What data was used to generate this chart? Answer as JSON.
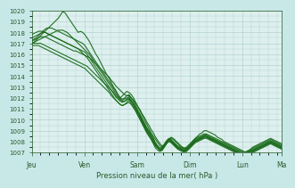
{
  "xlabel": "Pression niveau de la mer( hPa )",
  "bg_color": "#c8e8e8",
  "plot_bg_color": "#ddf0ee",
  "line_color": "#1a6b1a",
  "grid_color": "#aacccc",
  "tick_color": "#2a5a2a",
  "ylim": [
    1007,
    1020
  ],
  "yticks": [
    1007,
    1008,
    1009,
    1010,
    1011,
    1012,
    1013,
    1014,
    1015,
    1016,
    1017,
    1018,
    1019,
    1020
  ],
  "day_positions": [
    0,
    24,
    48,
    72,
    96,
    114
  ],
  "day_labels": [
    "Jeu",
    "Ven",
    "Sam",
    "Dim",
    "Lun",
    "Ma"
  ],
  "xlim": [
    0,
    114
  ],
  "series": [
    [
      1017.0,
      1017.1,
      1017.3,
      1017.5,
      1017.7,
      1017.9,
      1018.1,
      1018.3,
      1018.5,
      1018.7,
      1018.9,
      1019.1,
      1019.3,
      1019.6,
      1019.9,
      1019.8,
      1019.5,
      1019.2,
      1018.9,
      1018.6,
      1018.3,
      1018.0,
      1018.1,
      1018.0,
      1017.8,
      1017.5,
      1017.2,
      1016.8,
      1016.4,
      1016.0,
      1015.7,
      1015.3,
      1014.9,
      1014.5,
      1014.1,
      1013.8,
      1013.4,
      1013.0,
      1012.7,
      1012.3,
      1012.0,
      1012.2,
      1012.4,
      1012.6,
      1012.5,
      1012.3,
      1012.0,
      1011.6,
      1011.2,
      1010.8,
      1010.4,
      1010.0,
      1009.6,
      1009.2,
      1008.8,
      1008.5,
      1008.2,
      1007.9,
      1007.6,
      1007.5,
      1007.6,
      1007.9,
      1008.2,
      1008.4,
      1008.3,
      1008.1,
      1007.9,
      1007.7,
      1007.5,
      1007.4,
      1007.3,
      1007.5,
      1007.8,
      1008.1,
      1008.3,
      1008.5,
      1008.7,
      1008.8,
      1009.0,
      1009.0,
      1008.9,
      1008.8,
      1008.7,
      1008.6,
      1008.4,
      1008.3,
      1008.2,
      1008.0,
      1007.9,
      1007.8,
      1007.7,
      1007.6,
      1007.5,
      1007.4,
      1007.3,
      1007.2,
      1007.1,
      1007.0,
      1007.1,
      1007.3,
      1007.5,
      1007.6,
      1007.7,
      1007.8,
      1007.9,
      1008.0,
      1008.1,
      1008.2,
      1008.3,
      1008.2,
      1008.1,
      1008.0,
      1007.9,
      1007.8
    ],
    [
      1017.2,
      1017.3,
      1017.4,
      1017.5,
      1017.6,
      1017.6,
      1017.6,
      1017.5,
      1017.4,
      1017.3,
      1017.2,
      1017.1,
      1017.0,
      1016.9,
      1016.8,
      1016.7,
      1016.6,
      1016.5,
      1016.4,
      1016.3,
      1016.3,
      1016.2,
      1016.1,
      1016.0,
      1015.9,
      1015.8,
      1015.7,
      1015.5,
      1015.3,
      1015.1,
      1014.9,
      1014.7,
      1014.5,
      1014.3,
      1014.1,
      1013.9,
      1013.6,
      1013.4,
      1013.1,
      1012.9,
      1012.7,
      1012.5,
      1012.3,
      1012.2,
      1012.2,
      1012.0,
      1011.8,
      1011.5,
      1011.2,
      1010.9,
      1010.5,
      1010.2,
      1009.8,
      1009.5,
      1009.1,
      1008.8,
      1008.4,
      1008.1,
      1007.8,
      1007.6,
      1007.7,
      1007.9,
      1008.2,
      1008.3,
      1008.2,
      1008.0,
      1007.8,
      1007.6,
      1007.5,
      1007.4,
      1007.5,
      1007.7,
      1007.9,
      1008.1,
      1008.3,
      1008.4,
      1008.5,
      1008.6,
      1008.7,
      1008.7,
      1008.6,
      1008.5,
      1008.4,
      1008.3,
      1008.2,
      1008.1,
      1008.0,
      1007.9,
      1007.8,
      1007.7,
      1007.6,
      1007.5,
      1007.4,
      1007.3,
      1007.2,
      1007.1,
      1007.0,
      1007.1,
      1007.2,
      1007.3,
      1007.4,
      1007.5,
      1007.6,
      1007.7,
      1007.8,
      1007.9,
      1008.0,
      1008.1,
      1008.2,
      1008.1,
      1008.0,
      1007.9,
      1007.8,
      1007.7
    ],
    [
      1017.0,
      1017.0,
      1017.0,
      1017.0,
      1017.0,
      1016.9,
      1016.8,
      1016.7,
      1016.6,
      1016.5,
      1016.4,
      1016.3,
      1016.2,
      1016.1,
      1016.0,
      1015.9,
      1015.8,
      1015.7,
      1015.6,
      1015.5,
      1015.4,
      1015.3,
      1015.2,
      1015.1,
      1015.0,
      1014.9,
      1014.7,
      1014.5,
      1014.3,
      1014.1,
      1013.9,
      1013.7,
      1013.5,
      1013.3,
      1013.1,
      1012.9,
      1012.7,
      1012.5,
      1012.2,
      1012.0,
      1011.8,
      1011.7,
      1011.7,
      1011.8,
      1011.9,
      1011.7,
      1011.4,
      1011.1,
      1010.7,
      1010.4,
      1010.0,
      1009.6,
      1009.2,
      1008.9,
      1008.5,
      1008.2,
      1007.8,
      1007.5,
      1007.3,
      1007.4,
      1007.7,
      1008.0,
      1008.2,
      1008.1,
      1007.9,
      1007.7,
      1007.5,
      1007.4,
      1007.3,
      1007.2,
      1007.3,
      1007.5,
      1007.7,
      1007.9,
      1008.1,
      1008.2,
      1008.3,
      1008.4,
      1008.5,
      1008.5,
      1008.4,
      1008.3,
      1008.2,
      1008.1,
      1008.0,
      1007.9,
      1007.8,
      1007.7,
      1007.6,
      1007.5,
      1007.4,
      1007.3,
      1007.2,
      1007.1,
      1007.0,
      1006.9,
      1006.8,
      1006.9,
      1007.0,
      1007.1,
      1007.2,
      1007.3,
      1007.4,
      1007.5,
      1007.6,
      1007.7,
      1007.8,
      1007.9,
      1008.0,
      1007.9,
      1007.8,
      1007.7,
      1007.6,
      1007.5
    ],
    [
      1016.8,
      1016.8,
      1016.8,
      1016.8,
      1016.7,
      1016.6,
      1016.5,
      1016.4,
      1016.3,
      1016.2,
      1016.1,
      1016.0,
      1015.9,
      1015.8,
      1015.7,
      1015.6,
      1015.5,
      1015.4,
      1015.3,
      1015.2,
      1015.1,
      1015.0,
      1014.9,
      1014.8,
      1014.7,
      1014.5,
      1014.3,
      1014.1,
      1013.9,
      1013.7,
      1013.5,
      1013.3,
      1013.1,
      1012.9,
      1012.7,
      1012.5,
      1012.2,
      1012.0,
      1011.8,
      1011.6,
      1011.4,
      1011.3,
      1011.4,
      1011.5,
      1011.6,
      1011.4,
      1011.1,
      1010.8,
      1010.4,
      1010.1,
      1009.7,
      1009.3,
      1008.9,
      1008.6,
      1008.2,
      1007.9,
      1007.6,
      1007.4,
      1007.2,
      1007.3,
      1007.6,
      1007.9,
      1008.1,
      1008.0,
      1007.8,
      1007.6,
      1007.4,
      1007.3,
      1007.2,
      1007.1,
      1007.2,
      1007.4,
      1007.6,
      1007.8,
      1008.0,
      1008.1,
      1008.2,
      1008.3,
      1008.4,
      1008.4,
      1008.3,
      1008.2,
      1008.1,
      1008.0,
      1007.9,
      1007.8,
      1007.7,
      1007.6,
      1007.5,
      1007.4,
      1007.3,
      1007.2,
      1007.1,
      1007.0,
      1006.9,
      1006.8,
      1006.7,
      1006.8,
      1006.9,
      1007.0,
      1007.1,
      1007.2,
      1007.3,
      1007.4,
      1007.5,
      1007.6,
      1007.7,
      1007.8,
      1007.9,
      1007.8,
      1007.7,
      1007.6,
      1007.5,
      1007.4
    ],
    [
      1017.0,
      1017.1,
      1017.2,
      1017.3,
      1017.4,
      1017.5,
      1017.6,
      1017.7,
      1017.8,
      1017.9,
      1018.0,
      1018.1,
      1018.2,
      1018.2,
      1018.2,
      1018.1,
      1018.0,
      1017.8,
      1017.6,
      1017.4,
      1017.2,
      1017.0,
      1016.8,
      1016.6,
      1016.4,
      1016.2,
      1016.0,
      1015.7,
      1015.4,
      1015.1,
      1014.8,
      1014.5,
      1014.2,
      1013.9,
      1013.6,
      1013.3,
      1013.0,
      1012.7,
      1012.4,
      1012.1,
      1011.9,
      1011.8,
      1011.9,
      1012.0,
      1012.1,
      1011.8,
      1011.5,
      1011.1,
      1010.7,
      1010.3,
      1009.9,
      1009.5,
      1009.1,
      1008.8,
      1008.5,
      1008.1,
      1007.7,
      1007.5,
      1007.3,
      1007.4,
      1007.7,
      1008.0,
      1008.2,
      1008.1,
      1007.9,
      1007.7,
      1007.5,
      1007.4,
      1007.3,
      1007.2,
      1007.3,
      1007.5,
      1007.7,
      1007.9,
      1008.1,
      1008.2,
      1008.3,
      1008.4,
      1008.5,
      1008.5,
      1008.4,
      1008.3,
      1008.2,
      1008.1,
      1008.0,
      1007.9,
      1007.8,
      1007.7,
      1007.6,
      1007.5,
      1007.4,
      1007.3,
      1007.2,
      1007.1,
      1007.0,
      1006.9,
      1006.8,
      1006.9,
      1007.0,
      1007.1,
      1007.2,
      1007.3,
      1007.4,
      1007.5,
      1007.6,
      1007.7,
      1007.8,
      1007.9,
      1008.0,
      1007.9,
      1007.8,
      1007.7,
      1007.6,
      1007.5
    ],
    [
      1017.3,
      1017.4,
      1017.5,
      1017.7,
      1017.9,
      1018.1,
      1018.3,
      1018.4,
      1018.4,
      1018.4,
      1018.3,
      1018.2,
      1018.1,
      1018.0,
      1017.9,
      1017.8,
      1017.7,
      1017.6,
      1017.5,
      1017.4,
      1017.3,
      1017.2,
      1017.1,
      1017.0,
      1016.8,
      1016.5,
      1016.2,
      1015.9,
      1015.6,
      1015.3,
      1015.0,
      1014.7,
      1014.4,
      1014.1,
      1013.8,
      1013.5,
      1013.2,
      1012.9,
      1012.6,
      1012.3,
      1012.0,
      1011.9,
      1012.0,
      1012.2,
      1012.3,
      1012.0,
      1011.7,
      1011.3,
      1010.9,
      1010.5,
      1010.1,
      1009.7,
      1009.3,
      1009.0,
      1008.7,
      1008.3,
      1007.9,
      1007.6,
      1007.4,
      1007.5,
      1007.8,
      1008.1,
      1008.3,
      1008.2,
      1008.0,
      1007.8,
      1007.6,
      1007.5,
      1007.4,
      1007.3,
      1007.4,
      1007.6,
      1007.8,
      1008.0,
      1008.2,
      1008.3,
      1008.4,
      1008.5,
      1008.6,
      1008.6,
      1008.5,
      1008.4,
      1008.3,
      1008.2,
      1008.1,
      1008.0,
      1007.9,
      1007.8,
      1007.7,
      1007.6,
      1007.5,
      1007.4,
      1007.3,
      1007.2,
      1007.1,
      1007.0,
      1006.9,
      1007.0,
      1007.1,
      1007.2,
      1007.3,
      1007.4,
      1007.5,
      1007.6,
      1007.7,
      1007.8,
      1007.9,
      1008.0,
      1008.1,
      1008.0,
      1007.9,
      1007.8,
      1007.7,
      1007.6
    ],
    [
      1017.5,
      1017.6,
      1017.7,
      1017.8,
      1017.9,
      1018.0,
      1018.0,
      1017.9,
      1017.8,
      1017.7,
      1017.6,
      1017.5,
      1017.4,
      1017.3,
      1017.2,
      1017.1,
      1017.0,
      1016.9,
      1016.8,
      1016.7,
      1016.6,
      1016.5,
      1016.4,
      1016.3,
      1016.2,
      1016.0,
      1015.7,
      1015.4,
      1015.1,
      1014.8,
      1014.5,
      1014.2,
      1013.9,
      1013.6,
      1013.3,
      1013.0,
      1012.7,
      1012.4,
      1012.1,
      1011.9,
      1011.7,
      1011.6,
      1011.7,
      1011.9,
      1012.0,
      1011.7,
      1011.4,
      1011.0,
      1010.6,
      1010.2,
      1009.8,
      1009.4,
      1009.0,
      1008.7,
      1008.4,
      1008.0,
      1007.6,
      1007.4,
      1007.2,
      1007.3,
      1007.6,
      1007.9,
      1008.1,
      1008.0,
      1007.8,
      1007.6,
      1007.4,
      1007.3,
      1007.2,
      1007.1,
      1007.2,
      1007.4,
      1007.6,
      1007.8,
      1008.0,
      1008.1,
      1008.2,
      1008.3,
      1008.4,
      1008.4,
      1008.3,
      1008.2,
      1008.1,
      1008.0,
      1007.9,
      1007.8,
      1007.7,
      1007.6,
      1007.5,
      1007.4,
      1007.3,
      1007.2,
      1007.1,
      1007.0,
      1006.9,
      1006.8,
      1006.7,
      1006.8,
      1006.9,
      1007.0,
      1007.1,
      1007.2,
      1007.3,
      1007.4,
      1007.5,
      1007.6,
      1007.7,
      1007.8,
      1007.9,
      1007.8,
      1007.7,
      1007.6,
      1007.5,
      1007.4
    ],
    [
      1017.8,
      1017.9,
      1018.0,
      1018.1,
      1018.1,
      1018.1,
      1018.0,
      1017.9,
      1017.8,
      1017.7,
      1017.6,
      1017.5,
      1017.4,
      1017.3,
      1017.2,
      1017.1,
      1017.0,
      1016.9,
      1016.8,
      1016.7,
      1016.6,
      1016.5,
      1016.3,
      1016.1,
      1015.9,
      1015.7,
      1015.4,
      1015.1,
      1014.8,
      1014.5,
      1014.2,
      1013.9,
      1013.6,
      1013.3,
      1013.0,
      1012.7,
      1012.4,
      1012.1,
      1011.8,
      1011.6,
      1011.4,
      1011.3,
      1011.4,
      1011.6,
      1011.8,
      1011.5,
      1011.2,
      1010.8,
      1010.4,
      1010.0,
      1009.6,
      1009.2,
      1008.8,
      1008.5,
      1008.2,
      1007.8,
      1007.4,
      1007.2,
      1007.1,
      1007.2,
      1007.5,
      1007.8,
      1008.0,
      1007.9,
      1007.7,
      1007.5,
      1007.3,
      1007.2,
      1007.1,
      1007.0,
      1007.1,
      1007.3,
      1007.5,
      1007.7,
      1007.9,
      1008.0,
      1008.1,
      1008.2,
      1008.3,
      1008.3,
      1008.2,
      1008.1,
      1008.0,
      1007.9,
      1007.8,
      1007.7,
      1007.6,
      1007.5,
      1007.4,
      1007.3,
      1007.2,
      1007.1,
      1007.0,
      1006.9,
      1006.8,
      1006.7,
      1006.6,
      1006.7,
      1006.8,
      1006.9,
      1007.0,
      1007.1,
      1007.2,
      1007.3,
      1007.4,
      1007.5,
      1007.6,
      1007.7,
      1007.8,
      1007.7,
      1007.6,
      1007.5,
      1007.4,
      1007.3
    ]
  ]
}
